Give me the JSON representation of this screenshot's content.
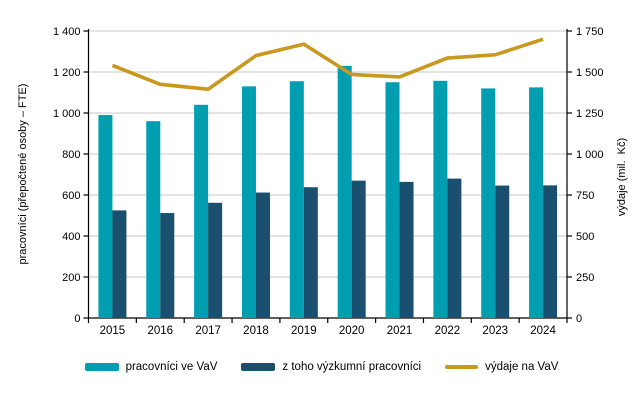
{
  "chart_data": {
    "type": "bar",
    "subtype": "combo-bar-line",
    "title": "",
    "categories": [
      "2015",
      "2016",
      "2017",
      "2018",
      "2019",
      "2020",
      "2021",
      "2022",
      "2023",
      "2024"
    ],
    "series": [
      {
        "name": "pracovníci ve VaV",
        "kind": "bar",
        "axis": "left",
        "color": "#009EB0",
        "values": [
          990,
          960,
          1040,
          1130,
          1155,
          1230,
          1150,
          1157,
          1120,
          1125
        ]
      },
      {
        "name": "z toho výzkumní pracovníci",
        "kind": "bar",
        "axis": "left",
        "color": "#1A4F6E",
        "values": [
          525,
          512,
          562,
          612,
          638,
          670,
          664,
          680,
          646,
          647
        ]
      },
      {
        "name": "výdaje na VaV",
        "kind": "line",
        "axis": "right",
        "color": "#C9981E",
        "values": [
          1540,
          1425,
          1395,
          1600,
          1670,
          1485,
          1470,
          1585,
          1605,
          1700
        ]
      }
    ],
    "y_left": {
      "label": "pracovníci (přepočtené osoby – FTE)",
      "min": 0,
      "max": 1400,
      "step": 200,
      "ticks": [
        "0",
        "200",
        "400",
        "600",
        "800",
        "1 000",
        "1 200",
        "1 400"
      ]
    },
    "y_right": {
      "label": "výdaje (mil.  Kč)",
      "min": 0,
      "max": 1750,
      "step": 250,
      "ticks": [
        "0",
        "250",
        "500",
        "750",
        "1 000",
        "1 250",
        "1 500",
        "1 750"
      ]
    },
    "grid": true,
    "legend_position": "bottom",
    "colors": {
      "gridline": "#C9C9C9",
      "axis": "#000000",
      "text": "#000000",
      "background": "#FFFFFF"
    }
  }
}
